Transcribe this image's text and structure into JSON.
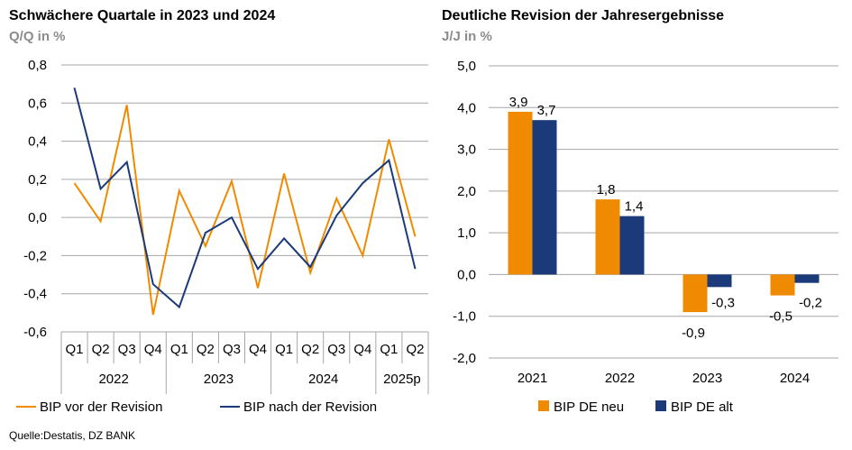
{
  "source_note": "Quelle:Destatis, DZ BANK",
  "colors": {
    "orange": "#F08A00",
    "navy": "#1B3A7A",
    "grid": "#a6a6a6",
    "subtitle": "#8c8c8c"
  },
  "chart_data": [
    {
      "type": "line",
      "title": "Schwächere Quartale in 2023 und 2024",
      "subtitle": "Q/Q in %",
      "ylim": [
        -0.6,
        0.8
      ],
      "yticks": [
        "0,8",
        "0,6",
        "0,4",
        "0,2",
        "0,0",
        "-0,2",
        "-0,4",
        "-0,6"
      ],
      "ytick_values": [
        0.8,
        0.6,
        0.4,
        0.2,
        0.0,
        -0.2,
        -0.4,
        -0.6
      ],
      "grid": true,
      "legend_position": "bottom",
      "categories": [
        "Q1",
        "Q2",
        "Q3",
        "Q4",
        "Q1",
        "Q2",
        "Q3",
        "Q4",
        "Q1",
        "Q2",
        "Q3",
        "Q4",
        "Q1",
        "Q2"
      ],
      "x_groups": [
        {
          "label": "2022",
          "span": 4
        },
        {
          "label": "2023",
          "span": 4
        },
        {
          "label": "2024",
          "span": 4
        },
        {
          "label": "2025p",
          "span": 2
        }
      ],
      "series": [
        {
          "name": "BIP vor der Revision",
          "color": "#F08A00",
          "values": [
            0.18,
            -0.02,
            0.59,
            -0.51,
            0.14,
            -0.15,
            0.19,
            -0.37,
            0.23,
            -0.29,
            0.1,
            -0.2,
            0.41,
            -0.1
          ]
        },
        {
          "name": "BIP nach der Revision",
          "color": "#1B3A7A",
          "values": [
            0.68,
            0.15,
            0.29,
            -0.35,
            -0.47,
            -0.08,
            0.0,
            -0.27,
            -0.11,
            -0.26,
            0.01,
            0.18,
            0.3,
            -0.27
          ]
        }
      ]
    },
    {
      "type": "bar",
      "title": "Deutliche Revision der Jahresergebnisse",
      "subtitle": "J/J in %",
      "ylim": [
        -2.0,
        5.0
      ],
      "yticks": [
        "5,0",
        "4,0",
        "3,0",
        "2,0",
        "1,0",
        "0,0",
        "-1,0",
        "-2,0"
      ],
      "ytick_values": [
        5,
        4,
        3,
        2,
        1,
        0,
        -1,
        -2
      ],
      "grid": true,
      "legend_position": "bottom",
      "categories": [
        "2021",
        "2022",
        "2023",
        "2024"
      ],
      "series": [
        {
          "name": "BIP DE neu",
          "color": "#F08A00",
          "values": [
            3.9,
            1.8,
            -0.9,
            -0.5
          ],
          "labels": [
            "3,9",
            "1,8",
            "-0,9",
            "-0,5"
          ]
        },
        {
          "name": "BIP DE alt",
          "color": "#1B3A7A",
          "values": [
            3.7,
            1.4,
            -0.3,
            -0.2
          ],
          "labels": [
            "3,7",
            "1,4",
            "-0,3",
            "-0,2"
          ]
        }
      ]
    }
  ]
}
